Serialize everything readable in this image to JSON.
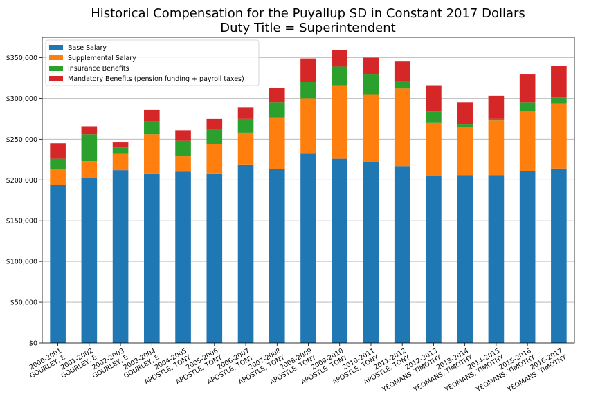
{
  "chart_data": {
    "type": "bar",
    "stacked": true,
    "title": "Historical Compensation for the Puyallup SD in Constant 2017 Dollars",
    "subtitle": "Duty Title = Superintendent",
    "xlabel": "",
    "ylabel": "",
    "ylim": [
      0,
      375000
    ],
    "yticks": [
      0,
      50000,
      100000,
      150000,
      200000,
      250000,
      300000,
      350000
    ],
    "ytick_labels": [
      "$0",
      "$50,000",
      "$100,000",
      "$150,000",
      "$200,000",
      "$250,000",
      "$300,000",
      "$350,000"
    ],
    "grid": "horizontal",
    "legend_position": "top-left",
    "categories": [
      [
        "2000-2001",
        "GOURLEY, E"
      ],
      [
        "2001-2002",
        "GOURLEY, E"
      ],
      [
        "2002-2003",
        "GOURLEY, E"
      ],
      [
        "2003-2004",
        "GOURLEY, E"
      ],
      [
        "2004-2005",
        "APOSTLE, TONY"
      ],
      [
        "2005-2006",
        "APOSTLE, TONY"
      ],
      [
        "2006-2007",
        "APOSTLE, TONY"
      ],
      [
        "2007-2008",
        "APOSTLE, TONY"
      ],
      [
        "2008-2009",
        "APOSTLE, TONY"
      ],
      [
        "2009-2010",
        "APOSTLE, TONY"
      ],
      [
        "2010-2011",
        "APOSTLE, TONY"
      ],
      [
        "2011-2012",
        "APOSTLE, TONY"
      ],
      [
        "2012-2013",
        "YEOMANS, TIMOTHY"
      ],
      [
        "2013-2014",
        "YEOMANS, TIMOTHY"
      ],
      [
        "2014-2015",
        "YEOMANS, TIMOTHY"
      ],
      [
        "2015-2016",
        "YEOMANS, TIMOTHY"
      ],
      [
        "2016-2017",
        "YEOMANS, TIMOTHY"
      ]
    ],
    "series": [
      {
        "name": "Base Salary",
        "color": "#1f77b4",
        "values": [
          194000,
          202000,
          212000,
          208000,
          210000,
          208000,
          219000,
          213000,
          232000,
          226000,
          222000,
          217000,
          205000,
          206000,
          206000,
          211000,
          214000
        ]
      },
      {
        "name": "Supplemental Salary",
        "color": "#ff7f0e",
        "values": [
          19000,
          21000,
          20000,
          48000,
          19000,
          36000,
          39000,
          64000,
          68000,
          90000,
          83000,
          95000,
          65000,
          59000,
          67000,
          74000,
          80000
        ]
      },
      {
        "name": "Insurance Benefits",
        "color": "#2ca02c",
        "values": [
          13000,
          33000,
          8000,
          16000,
          19000,
          19000,
          17000,
          18000,
          20000,
          23000,
          25000,
          9000,
          14000,
          3000,
          2000,
          10000,
          7000
        ]
      },
      {
        "name": "Mandatory Benefits (pension funding + payroll taxes)",
        "color": "#d62728",
        "values": [
          19000,
          10000,
          6000,
          14000,
          13000,
          12000,
          14000,
          18000,
          29000,
          20000,
          20000,
          25000,
          32000,
          27000,
          28000,
          35000,
          39000
        ]
      }
    ]
  }
}
